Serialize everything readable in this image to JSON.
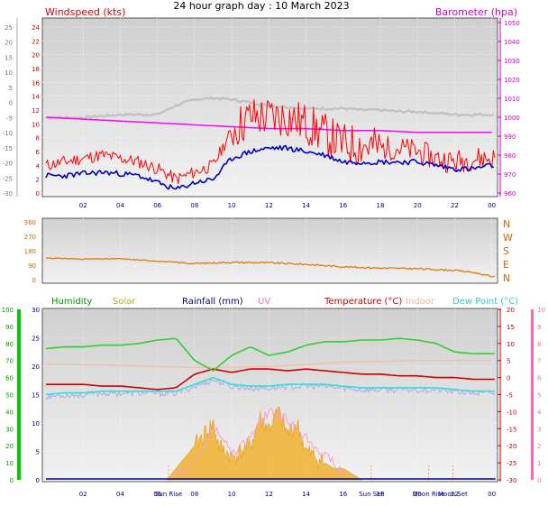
{
  "title": "24 hour graph day : 10 March 2023",
  "colors": {
    "wind_speed": "#ff0000",
    "wind_avg": "#0000cc",
    "barometer": "#ff00ff",
    "temperature_trace": "#c0c0c0",
    "direction": "#e07a10",
    "humidity": "#33cc33",
    "solar": "#f0b030",
    "rainfall": "#000099",
    "uv": "#ff99cc",
    "temperature": "#cc0000",
    "indoor": "#f0c0a8",
    "dew_point": "#33dddd",
    "plot_bg": "#dcdcdc",
    "axis_green": "#00cc00",
    "axis_pink": "#ff66aa"
  },
  "chart_data": [
    {
      "type": "line",
      "panel": "wind-barometer",
      "left_axis_label": "Windspeed (kts)",
      "right_axis_label": "Barometer (hpa)",
      "x_ticks": [
        "02",
        "04",
        "06",
        "08",
        "10",
        "12",
        "14",
        "16",
        "18",
        "20",
        "22",
        "00"
      ],
      "left_ticks_temp": [
        "25",
        "20",
        "15",
        "10",
        "5",
        "0",
        "-5",
        "-10",
        "-15",
        "-20",
        "-25",
        "-30"
      ],
      "left_ticks_wind": [
        "24",
        "22",
        "20",
        "18",
        "16",
        "14",
        "12",
        "10",
        "8",
        "6",
        "4",
        "2",
        "0"
      ],
      "right_ticks": [
        "1050",
        "1040",
        "1030",
        "1020",
        "1010",
        "1000",
        "990",
        "980",
        "970",
        "960"
      ],
      "wind_ylim": [
        0,
        24
      ],
      "baro_ylim": [
        960,
        1050
      ],
      "temp_ylim": [
        -30,
        25
      ],
      "series": [
        {
          "key": "wind_gust",
          "x": [
            0,
            1,
            2,
            3,
            4,
            5,
            6,
            7,
            8,
            9,
            10,
            11,
            12,
            13,
            14,
            15,
            16,
            17,
            18,
            19,
            20,
            21,
            22,
            23,
            24
          ],
          "values": [
            4,
            4.5,
            5,
            5.5,
            5,
            4.5,
            3.5,
            2,
            3,
            4,
            9,
            11,
            11,
            11,
            10,
            8.5,
            7,
            7,
            6.5,
            6.5,
            6,
            5,
            4.5,
            5,
            5
          ]
        },
        {
          "key": "wind_avg",
          "x": [
            0,
            1,
            2,
            3,
            4,
            5,
            6,
            7,
            8,
            9,
            10,
            11,
            12,
            13,
            14,
            15,
            16,
            17,
            18,
            19,
            20,
            21,
            22,
            23,
            24
          ],
          "values": [
            2.5,
            2.5,
            2.8,
            3,
            2.8,
            2.5,
            1.5,
            0.5,
            1.5,
            2,
            5,
            6,
            6.5,
            6.5,
            6,
            5.5,
            4.5,
            4.5,
            4.5,
            4.5,
            4.5,
            4,
            3.5,
            3.5,
            4
          ]
        },
        {
          "key": "barometer",
          "x": [
            0,
            2,
            4,
            6,
            8,
            10,
            12,
            14,
            16,
            18,
            20,
            22,
            24
          ],
          "values": [
            1000,
            999,
            998,
            997,
            996,
            995,
            994,
            994,
            993,
            993,
            992,
            992,
            992
          ]
        },
        {
          "key": "temp_trace",
          "x": [
            0,
            1,
            2,
            3,
            4,
            5,
            6,
            7,
            8,
            9,
            10,
            11,
            12,
            13,
            14,
            15,
            16,
            17,
            18,
            19,
            20,
            21,
            22,
            23,
            24
          ],
          "values": [
            -5,
            -5,
            -5,
            -4.5,
            -4,
            -4,
            -4,
            -1,
            1,
            1.5,
            1,
            0,
            -1,
            -1.5,
            -2,
            -2,
            -2,
            -2.5,
            -2.5,
            -3,
            -3,
            -3.5,
            -4,
            -4,
            -4
          ]
        }
      ]
    },
    {
      "type": "line",
      "panel": "direction",
      "x_ticks": [
        "02",
        "04",
        "06",
        "08",
        "10",
        "12",
        "14",
        "16",
        "18",
        "20",
        "22",
        "00"
      ],
      "left_ticks": [
        "360",
        "270",
        "180",
        "90",
        "0"
      ],
      "right_ticks": [
        "N",
        "W",
        "S",
        "E",
        "N"
      ],
      "ylim": [
        0,
        360
      ],
      "series": [
        {
          "key": "direction",
          "x": [
            0,
            2,
            4,
            6,
            8,
            10,
            12,
            14,
            16,
            18,
            20,
            22,
            23,
            24
          ],
          "values": [
            135,
            128,
            130,
            115,
            100,
            108,
            105,
            95,
            80,
            72,
            68,
            58,
            45,
            20
          ]
        }
      ]
    },
    {
      "type": "line",
      "panel": "multi",
      "legend": [
        "Humidity",
        "Solar",
        "Rainfall (mm)",
        "UV",
        "Temperature (°C)",
        "Indoor",
        "Dew Point (°C)"
      ],
      "x_ticks": [
        "02",
        "04",
        "06",
        "08",
        "10",
        "12",
        "14",
        "16",
        "18",
        "20",
        "22",
        "00"
      ],
      "x_events": [
        "Sun Rise",
        "Sun Set",
        "Moon Rise",
        "Moon Set"
      ],
      "humidity_ticks": [
        "100",
        "90",
        "80",
        "70",
        "60",
        "50",
        "40",
        "30",
        "20",
        "10",
        "0"
      ],
      "rain_ticks": [
        "30",
        "25",
        "20",
        "15",
        "10",
        "5",
        "0"
      ],
      "temp_ticks": [
        "20",
        "15",
        "10",
        "5",
        "0",
        "-5",
        "-10",
        "-15",
        "-20",
        "-25",
        "-30"
      ],
      "uv_ticks": [
        "10",
        "9",
        "8",
        "7",
        "6",
        "5",
        "4",
        "3",
        "2",
        "1",
        "0"
      ],
      "humidity_ylim": [
        0,
        100
      ],
      "temp_ylim": [
        -30,
        20
      ],
      "series": [
        {
          "key": "humidity",
          "x": [
            0,
            1,
            2,
            3,
            4,
            5,
            6,
            7,
            8,
            9,
            10,
            11,
            12,
            13,
            14,
            15,
            16,
            17,
            18,
            19,
            20,
            21,
            22,
            23,
            24
          ],
          "values": [
            77,
            78,
            78,
            79,
            79,
            80,
            82,
            83,
            70,
            64,
            73,
            78,
            73,
            75,
            79,
            81,
            81,
            82,
            82,
            83,
            82,
            80,
            75,
            74,
            74
          ]
        },
        {
          "key": "indoor",
          "x": [
            0,
            4,
            8,
            12,
            16,
            20,
            24
          ],
          "values": [
            4,
            3.5,
            3,
            3.2,
            4.5,
            5,
            5
          ]
        },
        {
          "key": "temperature",
          "x": [
            0,
            1,
            2,
            3,
            4,
            5,
            6,
            7,
            8,
            9,
            10,
            11,
            12,
            13,
            14,
            15,
            16,
            17,
            18,
            19,
            20,
            21,
            22,
            23,
            24
          ],
          "values": [
            -2,
            -2,
            -2,
            -2.5,
            -2.5,
            -3,
            -3.5,
            -3,
            1,
            2.5,
            1.5,
            2.5,
            2.5,
            2,
            2.5,
            2,
            1.5,
            1,
            1,
            0.5,
            0.5,
            0,
            0,
            -0.5,
            -0.5
          ]
        },
        {
          "key": "dew_point",
          "x": [
            0,
            1,
            2,
            3,
            4,
            5,
            6,
            7,
            8,
            9,
            10,
            11,
            12,
            13,
            14,
            15,
            16,
            17,
            18,
            19,
            20,
            21,
            22,
            23,
            24
          ],
          "values": [
            -5,
            -4.5,
            -4.5,
            -4,
            -4,
            -4,
            -4,
            -4,
            -2,
            0,
            -2,
            -2.5,
            -2.5,
            -2,
            -2,
            -2,
            -2.5,
            -3,
            -3,
            -3,
            -3,
            -3,
            -3.5,
            -4,
            -4
          ]
        },
        {
          "key": "solar",
          "x": [
            6.5,
            7,
            7.5,
            8,
            8.5,
            9,
            9.3,
            10,
            10.5,
            11,
            11.5,
            12,
            12.5,
            13,
            13.5,
            14,
            14.5,
            15,
            15.5,
            16,
            16.5,
            17
          ],
          "values": [
            0,
            2,
            4,
            6,
            8,
            10,
            6,
            4,
            5,
            6,
            11,
            9,
            12,
            8,
            10,
            5,
            4,
            3,
            2,
            2,
            1,
            0
          ]
        },
        {
          "key": "uv",
          "x": [
            7,
            8,
            9,
            9.5,
            10,
            11,
            12,
            13,
            14,
            15,
            16
          ],
          "values": [
            0.2,
            1,
            3,
            2.5,
            1.5,
            2.5,
            4,
            3.5,
            2.5,
            1.5,
            0.3
          ]
        },
        {
          "key": "rainfall",
          "x": [
            0,
            24
          ],
          "values": [
            0,
            0
          ]
        }
      ]
    }
  ]
}
